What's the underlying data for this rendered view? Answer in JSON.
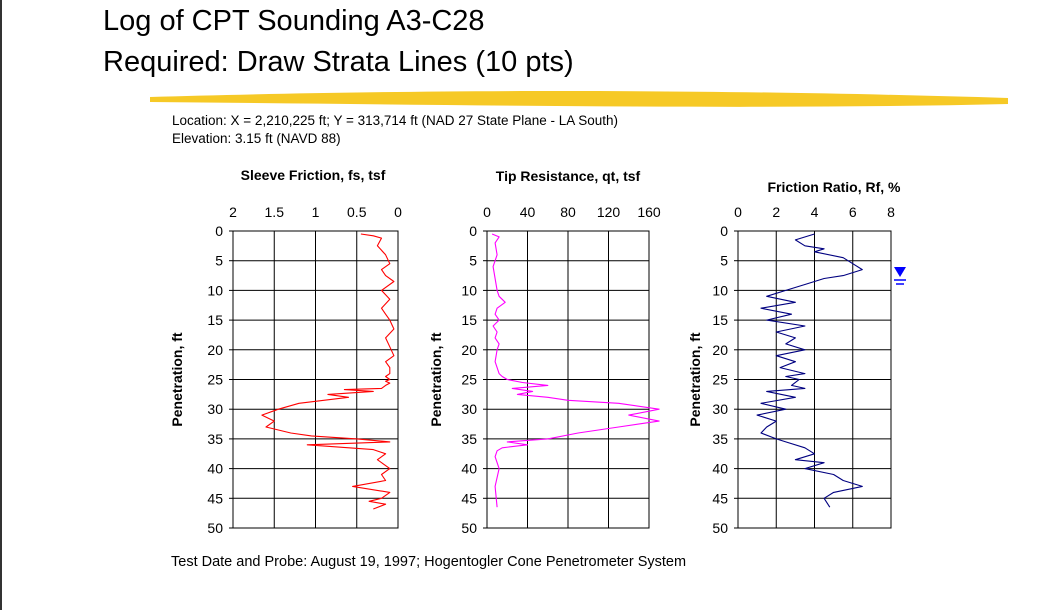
{
  "slide": {
    "title_line1": "Log of CPT Sounding A3-C28",
    "title_line2": "Required: Draw Strata Lines (10 pts)",
    "location": "Location:  X = 2,210,225 ft; Y = 313,714 ft (NAD 27 State Plane - LA South)",
    "elevation": "Elevation: 3.15 ft (NAVD 88)",
    "footer": "Test Date and Probe:  August 19, 1997; Hogentogler Cone Penetrometer System"
  },
  "colors": {
    "sleeve": "#ff0000",
    "tip": "#ff00ff",
    "ratio": "#000080",
    "highlight": "#f5c000",
    "water_table": "#0000ff"
  },
  "chart_data": [
    {
      "type": "line",
      "title": "Sleeve Friction, fs, tsf",
      "xlabel": "Sleeve Friction, fs, tsf",
      "ylabel": "Penetration, ft",
      "xlim": [
        2,
        0
      ],
      "ylim": [
        0,
        50
      ],
      "x_ticks": [
        "2",
        "1.5",
        "1",
        "0.5",
        "0"
      ],
      "y_ticks": [
        "0",
        "5",
        "10",
        "15",
        "20",
        "25",
        "30",
        "35",
        "40",
        "45",
        "50"
      ],
      "grid": true,
      "series": [
        {
          "x": [
            0.45,
            0.3,
            0.2,
            0.25,
            0.15,
            0.1,
            0.2,
            0.15,
            0.05,
            0.2,
            0.1,
            0.2,
            0.15,
            0.1,
            0.05,
            0.15,
            0.1,
            0.05,
            0.15,
            0.1,
            0.1,
            0.15,
            0.1,
            0.15,
            0.1,
            0.15,
            0.2,
            0.65,
            0.3,
            0.85,
            0.6,
            1.2,
            1.45,
            1.65,
            1.5,
            1.6,
            1.3,
            1.05,
            0.5,
            0.1,
            1.1,
            0.3,
            0.15,
            0.25,
            0.1,
            0.2,
            0.15,
            0.55,
            0.1,
            0.2,
            0.35,
            0.15,
            0.3
          ],
          "y": [
            0.5,
            0.8,
            1.2,
            2.5,
            4,
            5.5,
            6.5,
            7.5,
            8.5,
            10,
            11.5,
            13,
            14,
            15,
            16.5,
            18,
            19.5,
            21,
            22,
            23,
            24,
            24.5,
            25,
            25.3,
            25.6,
            26,
            26.5,
            26.7,
            27,
            27.5,
            28,
            29,
            30,
            31,
            32,
            33,
            34,
            34.5,
            35,
            35.5,
            36,
            36.8,
            37.5,
            38.5,
            40,
            41,
            42,
            43,
            44,
            45,
            45.5,
            46,
            46.8
          ]
        }
      ]
    },
    {
      "type": "line",
      "title": "Tip Resistance, qt, tsf",
      "xlabel": "Tip Resistance, qt, tsf",
      "ylabel": "Penetration, ft",
      "xlim": [
        0,
        160
      ],
      "ylim": [
        0,
        50
      ],
      "x_ticks": [
        "0",
        "40",
        "80",
        "120",
        "160"
      ],
      "y_ticks": [
        "0",
        "5",
        "10",
        "15",
        "20",
        "25",
        "30",
        "35",
        "40",
        "45",
        "50"
      ],
      "grid": true,
      "series": [
        {
          "x": [
            5,
            12,
            8,
            10,
            6,
            8,
            10,
            12,
            18,
            10,
            8,
            12,
            6,
            10,
            8,
            12,
            10,
            8,
            10,
            12,
            15,
            20,
            35,
            60,
            25,
            45,
            30,
            60,
            80,
            130,
            170,
            140,
            170,
            130,
            90,
            60,
            20,
            40,
            15,
            10,
            8,
            12,
            8,
            10
          ],
          "y": [
            0.5,
            1,
            2,
            4,
            6,
            8,
            10,
            11,
            12,
            13,
            14,
            15,
            16,
            17,
            18,
            19,
            20,
            22,
            23,
            24,
            24.5,
            25,
            25.5,
            26,
            26.5,
            27,
            27.5,
            28,
            28.5,
            29,
            30,
            31,
            32,
            33,
            34,
            35,
            35.5,
            36,
            36.5,
            37,
            38,
            40,
            43,
            46.5
          ]
        }
      ]
    },
    {
      "type": "line",
      "title": "Friction Ratio, Rf, %",
      "xlabel": "Friction Ratio, Rf, %",
      "ylabel": "Penetration, ft",
      "xlim": [
        0,
        8
      ],
      "ylim": [
        0,
        50
      ],
      "x_ticks": [
        "0",
        "2",
        "4",
        "6",
        "8"
      ],
      "y_ticks": [
        "0",
        "5",
        "10",
        "15",
        "20",
        "25",
        "30",
        "35",
        "40",
        "45",
        "50"
      ],
      "grid": true,
      "series": [
        {
          "x": [
            4,
            3,
            3.5,
            4.5,
            4,
            5.5,
            6,
            6.5,
            5.5,
            4.5,
            3.5,
            2.5,
            1.5,
            3,
            1.2,
            2.8,
            1.5,
            3.5,
            2,
            3,
            2.5,
            3.5,
            2,
            3,
            2.2,
            3.5,
            2.5,
            3.2,
            2.8,
            3.5,
            1.5,
            3,
            1.2,
            2.5,
            1,
            2,
            1.5,
            1.2,
            2,
            2.5,
            3.5,
            4,
            3,
            4.5,
            3.5,
            5,
            5.5,
            6.5,
            5,
            4.5,
            4.8
          ],
          "y": [
            0.5,
            1.5,
            2.5,
            3,
            3.5,
            4.5,
            5.5,
            6.5,
            7.5,
            8,
            9,
            10,
            11,
            12,
            13,
            14,
            15,
            16,
            17,
            18,
            19,
            20,
            21,
            22,
            23,
            24,
            24.5,
            25,
            26,
            26.5,
            27,
            28,
            29,
            30,
            31,
            32,
            33,
            34,
            35,
            35.5,
            36.5,
            37.5,
            38.5,
            39,
            40,
            41,
            42,
            43,
            44,
            45,
            46.5
          ]
        }
      ]
    }
  ]
}
